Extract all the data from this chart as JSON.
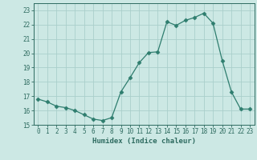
{
  "x": [
    0,
    1,
    2,
    3,
    4,
    5,
    6,
    7,
    8,
    9,
    10,
    11,
    12,
    13,
    14,
    15,
    16,
    17,
    18,
    19,
    20,
    21,
    22,
    23
  ],
  "y": [
    16.8,
    16.6,
    16.3,
    16.2,
    16.0,
    15.7,
    15.4,
    15.3,
    15.5,
    17.3,
    18.3,
    19.35,
    20.05,
    20.1,
    22.2,
    21.95,
    22.3,
    22.5,
    22.8,
    22.1,
    19.5,
    17.3,
    16.1,
    16.1
  ],
  "line_color": "#2e7d6e",
  "marker": "D",
  "marker_size": 2.5,
  "bg_color": "#cce8e4",
  "grid_color": "#aacfcb",
  "xlabel": "Humidex (Indice chaleur)",
  "xlim": [
    -0.5,
    23.5
  ],
  "ylim": [
    15,
    23.5
  ],
  "yticks": [
    15,
    16,
    17,
    18,
    19,
    20,
    21,
    22,
    23
  ],
  "xticks": [
    0,
    1,
    2,
    3,
    4,
    5,
    6,
    7,
    8,
    9,
    10,
    11,
    12,
    13,
    14,
    15,
    16,
    17,
    18,
    19,
    20,
    21,
    22,
    23
  ],
  "tick_color": "#2e6b60",
  "font_color": "#2e6b60",
  "axis_fontsize": 6.5,
  "tick_fontsize": 5.5
}
